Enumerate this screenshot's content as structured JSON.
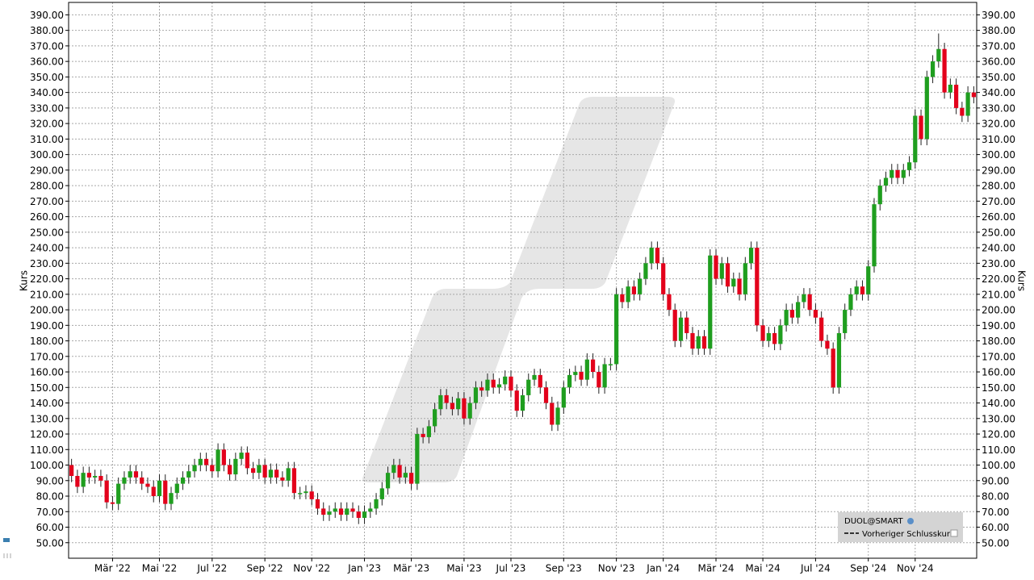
{
  "chart_data": {
    "type": "candlestick",
    "ylabel": "Kurs",
    "ylim": [
      40,
      398
    ],
    "yticks": [
      {
        "value": 50,
        "label": "50.00"
      },
      {
        "value": 60,
        "label": "60.00"
      },
      {
        "value": 70,
        "label": "70.00"
      },
      {
        "value": 80,
        "label": "80.00"
      },
      {
        "value": 90,
        "label": "90.00"
      },
      {
        "value": 100,
        "label": "100.00"
      },
      {
        "value": 110,
        "label": "110.00"
      },
      {
        "value": 120,
        "label": "120.00"
      },
      {
        "value": 130,
        "label": "130.00"
      },
      {
        "value": 140,
        "label": "140.00"
      },
      {
        "value": 150,
        "label": "150.00"
      },
      {
        "value": 160,
        "label": "160.00"
      },
      {
        "value": 170,
        "label": "170.00"
      },
      {
        "value": 180,
        "label": "180.00"
      },
      {
        "value": 190,
        "label": "190.00"
      },
      {
        "value": 200,
        "label": "200.00"
      },
      {
        "value": 210,
        "label": "210.00"
      },
      {
        "value": 220,
        "label": "220.00"
      },
      {
        "value": 230,
        "label": "230.00"
      },
      {
        "value": 240,
        "label": "240.00"
      },
      {
        "value": 250,
        "label": "250.00"
      },
      {
        "value": 260,
        "label": "260.00"
      },
      {
        "value": 270,
        "label": "270.00"
      },
      {
        "value": 280,
        "label": "280.00"
      },
      {
        "value": 290,
        "label": "290.00"
      },
      {
        "value": 300,
        "label": "300.00"
      },
      {
        "value": 310,
        "label": "310.00"
      },
      {
        "value": 320,
        "label": "320.00"
      },
      {
        "value": 330,
        "label": "330.00"
      },
      {
        "value": 340,
        "label": "340.00"
      },
      {
        "value": 350,
        "label": "350.00"
      },
      {
        "value": 360,
        "label": "360.00"
      },
      {
        "value": 370,
        "label": "370.00"
      },
      {
        "value": 380,
        "label": "380.00"
      },
      {
        "value": 390,
        "label": "390.00"
      }
    ],
    "grid": true,
    "categories": [
      null,
      null,
      null,
      null,
      null,
      null,
      null,
      "Mär '22",
      null,
      null,
      null,
      null,
      null,
      null,
      null,
      "Mai '22",
      null,
      null,
      null,
      null,
      null,
      null,
      null,
      null,
      "Jul '22",
      null,
      null,
      null,
      null,
      null,
      null,
      null,
      null,
      "Sep '22",
      null,
      null,
      null,
      null,
      null,
      null,
      null,
      "Nov '22",
      null,
      null,
      null,
      null,
      null,
      null,
      null,
      null,
      "Jan '23",
      null,
      null,
      null,
      null,
      null,
      null,
      null,
      "Mär '23",
      null,
      null,
      null,
      null,
      null,
      null,
      null,
      null,
      "Mai '23",
      null,
      null,
      null,
      null,
      null,
      null,
      null,
      "Jul '23",
      null,
      null,
      null,
      null,
      null,
      null,
      null,
      null,
      "Sep '23",
      null,
      null,
      null,
      null,
      null,
      null,
      null,
      null,
      "Nov '23",
      null,
      null,
      null,
      null,
      null,
      null,
      null,
      "Jan '24",
      null,
      null,
      null,
      null,
      null,
      null,
      null,
      null,
      "Mär '24",
      null,
      null,
      null,
      null,
      null,
      null,
      null,
      "Mai '24",
      null,
      null,
      null,
      null,
      null,
      null,
      null,
      null,
      "Jul '24",
      null,
      null,
      null,
      null,
      null,
      null,
      null,
      null,
      "Sep '24",
      null,
      null,
      null,
      null,
      null,
      null,
      null,
      "Nov '24",
      null,
      null,
      null,
      null,
      null,
      null,
      null,
      null,
      null,
      null
    ],
    "series": [
      {
        "name": "DUOL@SMART",
        "up_color": "#1f9e1f",
        "down_color": "#e3001b",
        "open": [
          100,
          93,
          86,
          95,
          92,
          93,
          90,
          76,
          75,
          88,
          92,
          96,
          92,
          88,
          86,
          80,
          90,
          75,
          82,
          88,
          92,
          96,
          100,
          104,
          100,
          96,
          110,
          100,
          94,
          104,
          108,
          98,
          95,
          100,
          92,
          97,
          92,
          90,
          98,
          82,
          82,
          83,
          78,
          72,
          68,
          70,
          72,
          68,
          72,
          70,
          66,
          70,
          72,
          78,
          85,
          95,
          100,
          92,
          95,
          88,
          120,
          118,
          125,
          136,
          145,
          140,
          136,
          143,
          130,
          140,
          150,
          148,
          155,
          150,
          152,
          157,
          148,
          135,
          145,
          155,
          158,
          150,
          140,
          126,
          137,
          150,
          158,
          160,
          155,
          168,
          160,
          150,
          165,
          165,
          210,
          205,
          215,
          210,
          220,
          230,
          240,
          230,
          210,
          200,
          180,
          195,
          185,
          175,
          183,
          175,
          235,
          220,
          230,
          215,
          220,
          210,
          230,
          240,
          190,
          180,
          185,
          178,
          190,
          200,
          195,
          205,
          210,
          200,
          195,
          180,
          175,
          150,
          185,
          200,
          210,
          215,
          210,
          228,
          268,
          280,
          285,
          290,
          285,
          290,
          295,
          325,
          310,
          350,
          360,
          368,
          340,
          345,
          330,
          325,
          340
        ],
        "high": [
          104,
          97,
          99,
          99,
          97,
          97,
          94,
          80,
          92,
          96,
          100,
          100,
          96,
          92,
          90,
          94,
          94,
          86,
          92,
          96,
          100,
          104,
          108,
          108,
          104,
          114,
          114,
          104,
          108,
          112,
          112,
          102,
          104,
          104,
          101,
          101,
          96,
          102,
          102,
          86,
          87,
          87,
          82,
          76,
          74,
          76,
          76,
          76,
          76,
          74,
          74,
          76,
          82,
          89,
          99,
          104,
          104,
          99,
          99,
          124,
          124,
          129,
          140,
          149,
          149,
          144,
          147,
          147,
          144,
          154,
          154,
          159,
          159,
          156,
          161,
          161,
          152,
          149,
          159,
          162,
          162,
          154,
          144,
          141,
          154,
          162,
          164,
          164,
          172,
          172,
          164,
          169,
          169,
          214,
          214,
          219,
          219,
          224,
          234,
          244,
          244,
          234,
          214,
          204,
          199,
          199,
          189,
          187,
          187,
          239,
          239,
          234,
          234,
          224,
          224,
          234,
          244,
          244,
          194,
          189,
          189,
          194,
          204,
          204,
          209,
          214,
          214,
          204,
          199,
          184,
          179,
          189,
          204,
          214,
          219,
          219,
          232,
          272,
          284,
          289,
          294,
          294,
          294,
          299,
          329,
          329,
          354,
          364,
          378,
          372,
          349,
          349,
          334,
          344,
          344
        ],
        "low": [
          89,
          82,
          82,
          88,
          88,
          86,
          72,
          71,
          71,
          84,
          88,
          88,
          84,
          82,
          76,
          76,
          71,
          71,
          78,
          84,
          88,
          92,
          96,
          96,
          92,
          92,
          96,
          90,
          90,
          100,
          94,
          91,
          91,
          88,
          88,
          88,
          86,
          86,
          78,
          78,
          78,
          74,
          68,
          64,
          64,
          66,
          64,
          64,
          66,
          62,
          62,
          66,
          68,
          74,
          81,
          91,
          88,
          88,
          84,
          84,
          114,
          114,
          121,
          132,
          136,
          132,
          132,
          126,
          126,
          136,
          144,
          144,
          146,
          146,
          148,
          144,
          131,
          131,
          141,
          151,
          146,
          136,
          122,
          122,
          133,
          146,
          154,
          151,
          151,
          156,
          146,
          146,
          161,
          161,
          201,
          201,
          206,
          206,
          216,
          226,
          226,
          206,
          196,
          176,
          176,
          181,
          171,
          171,
          171,
          171,
          216,
          216,
          211,
          211,
          206,
          206,
          226,
          186,
          176,
          176,
          174,
          174,
          186,
          191,
          191,
          201,
          196,
          191,
          176,
          171,
          146,
          146,
          181,
          196,
          206,
          206,
          206,
          224,
          264,
          276,
          281,
          281,
          281,
          286,
          291,
          306,
          306,
          346,
          356,
          336,
          336,
          326,
          321,
          321,
          333
        ],
        "close": [
          93,
          86,
          95,
          92,
          93,
          90,
          76,
          75,
          88,
          92,
          96,
          92,
          88,
          86,
          80,
          90,
          75,
          82,
          88,
          92,
          96,
          100,
          104,
          100,
          96,
          110,
          100,
          94,
          104,
          108,
          98,
          95,
          100,
          92,
          97,
          92,
          90,
          98,
          82,
          82,
          83,
          78,
          72,
          68,
          70,
          72,
          68,
          72,
          70,
          66,
          70,
          72,
          78,
          85,
          95,
          100,
          92,
          95,
          88,
          120,
          118,
          125,
          136,
          145,
          140,
          136,
          143,
          130,
          140,
          150,
          148,
          155,
          150,
          152,
          157,
          148,
          135,
          145,
          155,
          158,
          150,
          140,
          126,
          137,
          150,
          158,
          160,
          155,
          168,
          160,
          150,
          165,
          165,
          210,
          205,
          215,
          210,
          220,
          230,
          240,
          230,
          210,
          200,
          180,
          195,
          185,
          175,
          183,
          175,
          235,
          220,
          230,
          215,
          220,
          210,
          230,
          240,
          190,
          180,
          185,
          178,
          190,
          200,
          195,
          205,
          210,
          200,
          195,
          180,
          175,
          150,
          185,
          200,
          210,
          215,
          210,
          228,
          268,
          280,
          285,
          290,
          285,
          290,
          295,
          325,
          310,
          350,
          360,
          368,
          340,
          345,
          330,
          325,
          340,
          337
        ]
      }
    ],
    "previous_close_label": "Vorheriger Schlusskurs"
  }
}
